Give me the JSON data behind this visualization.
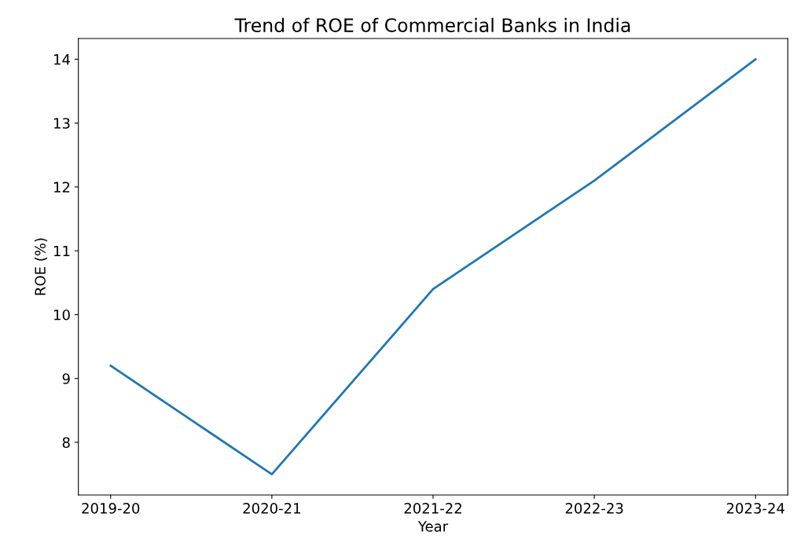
{
  "chart_data": {
    "type": "line",
    "title": "Trend of ROE of Commercial Banks in India",
    "xlabel": "Year",
    "ylabel": "ROE (%)",
    "categories": [
      "2019-20",
      "2020-21",
      "2021-22",
      "2022-23",
      "2023-24"
    ],
    "series": [
      {
        "color": "#1f77b4",
        "values": [
          9.2,
          7.5,
          10.4,
          12.1,
          14.0
        ]
      }
    ],
    "ylim": [
      7.175,
      14.325
    ],
    "yticks": [
      8,
      9,
      10,
      11,
      12,
      13,
      14
    ]
  }
}
